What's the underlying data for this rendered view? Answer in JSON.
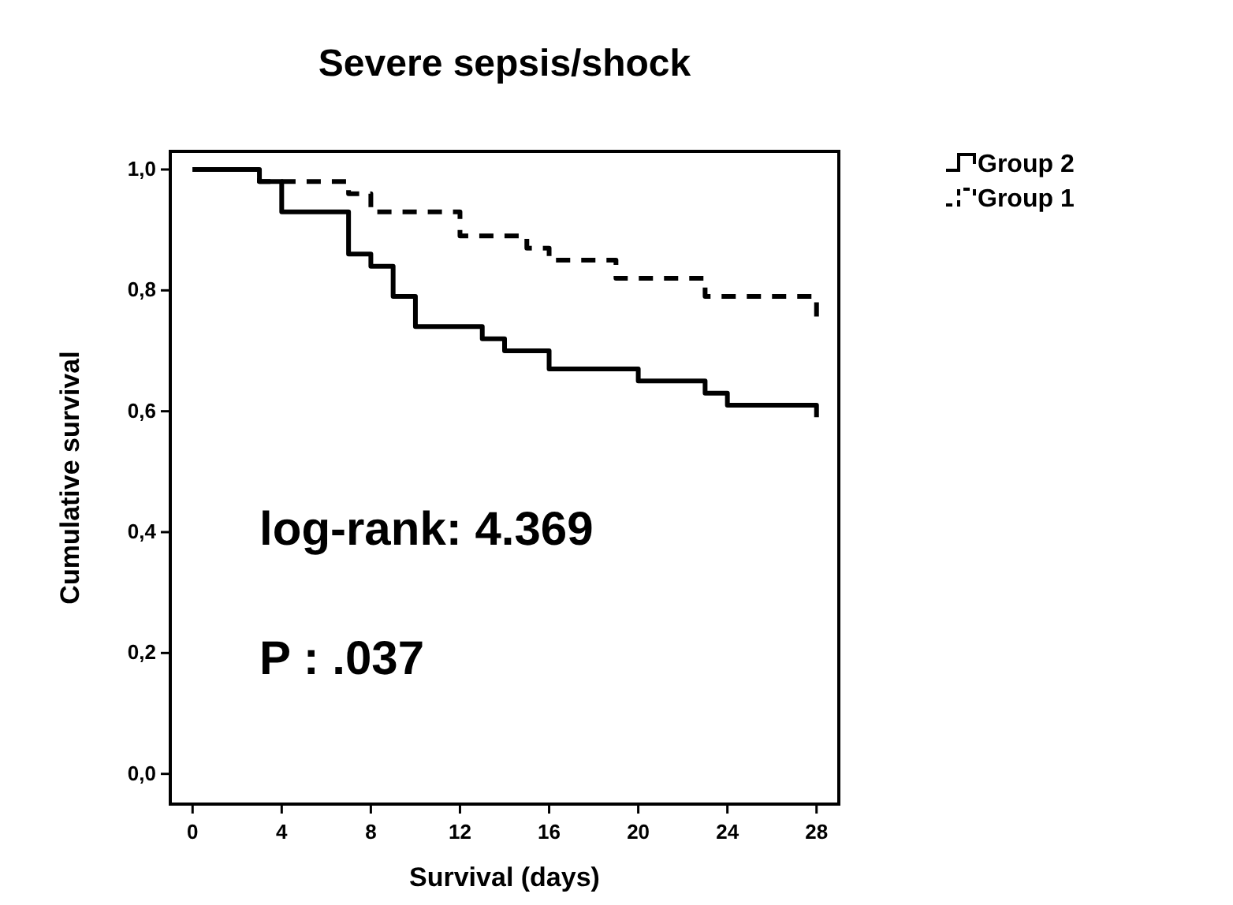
{
  "chart_data": {
    "type": "step",
    "title": "Severe sepsis/shock",
    "xlabel": "Survival (days)",
    "ylabel": "Cumulative survival",
    "xlim": [
      -1,
      29
    ],
    "ylim": [
      -0.05,
      1.03
    ],
    "xticks": [
      0,
      4,
      8,
      12,
      16,
      20,
      24,
      28
    ],
    "yticks": [
      {
        "value": 0,
        "label": "0,0"
      },
      {
        "value": 0.2,
        "label": "0,2"
      },
      {
        "value": 0.4,
        "label": "0,4"
      },
      {
        "value": 0.6,
        "label": "0,6"
      },
      {
        "value": 0.8,
        "label": "0,8"
      },
      {
        "value": 1,
        "label": "1,0"
      }
    ],
    "legend": "top right",
    "grid": false,
    "series": [
      {
        "name": "Group 2",
        "color": "#000000",
        "line_style": "solid",
        "x": [
          0,
          3,
          4,
          7,
          8,
          9,
          10,
          13,
          14,
          16,
          20,
          23,
          24,
          28,
          28
        ],
        "values": [
          1,
          0.98,
          0.93,
          0.86,
          0.84,
          0.79,
          0.74,
          0.72,
          0.7,
          0.67,
          0.65,
          0.63,
          0.61,
          0.61,
          0.59
        ]
      },
      {
        "name": "Group 1",
        "color": "#000000",
        "line_style": "dashed",
        "x": [
          0,
          3,
          7,
          8,
          12,
          15,
          16,
          19,
          23,
          28,
          28
        ],
        "values": [
          1,
          0.98,
          0.96,
          0.93,
          0.89,
          0.87,
          0.85,
          0.82,
          0.79,
          0.79,
          0.75
        ]
      }
    ],
    "annotations": [
      "log-rank: 4.369",
      "P : .037"
    ]
  }
}
